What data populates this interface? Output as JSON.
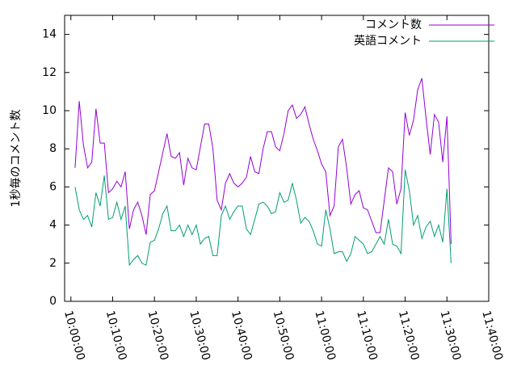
{
  "chart_data": {
    "type": "line",
    "y_label": "1秒毎のコメント数",
    "x": [
      "10:01:00",
      "10:02:00",
      "10:03:00",
      "10:04:00",
      "10:05:00",
      "10:06:00",
      "10:07:00",
      "10:08:00",
      "10:09:00",
      "10:10:00",
      "10:11:00",
      "10:12:00",
      "10:13:00",
      "10:14:00",
      "10:15:00",
      "10:16:00",
      "10:17:00",
      "10:18:00",
      "10:19:00",
      "10:20:00",
      "10:21:00",
      "10:22:00",
      "10:23:00",
      "10:24:00",
      "10:25:00",
      "10:26:00",
      "10:27:00",
      "10:28:00",
      "10:29:00",
      "10:30:00",
      "10:31:00",
      "10:32:00",
      "10:33:00",
      "10:34:00",
      "10:35:00",
      "10:36:00",
      "10:37:00",
      "10:38:00",
      "10:39:00",
      "10:40:00",
      "10:41:00",
      "10:42:00",
      "10:43:00",
      "10:44:00",
      "10:45:00",
      "10:46:00",
      "10:47:00",
      "10:48:00",
      "10:49:00",
      "10:50:00",
      "10:51:00",
      "10:52:00",
      "10:53:00",
      "10:54:00",
      "10:55:00",
      "10:56:00",
      "10:57:00",
      "10:58:00",
      "10:59:00",
      "11:00:00",
      "11:01:00",
      "11:02:00",
      "11:03:00",
      "11:04:00",
      "11:05:00",
      "11:06:00",
      "11:07:00",
      "11:08:00",
      "11:09:00",
      "11:10:00",
      "11:11:00",
      "11:12:00",
      "11:13:00",
      "11:14:00",
      "11:15:00",
      "11:16:00",
      "11:17:00",
      "11:18:00",
      "11:19:00",
      "11:20:00",
      "11:21:00",
      "11:22:00",
      "11:23:00",
      "11:24:00",
      "11:25:00",
      "11:26:00",
      "11:27:00",
      "11:28:00",
      "11:29:00",
      "11:30:00",
      "11:31:00"
    ],
    "series": [
      {
        "name": "コメント数",
        "color": "#9400d3",
        "values": [
          7.0,
          10.5,
          8.2,
          7.0,
          7.3,
          10.1,
          8.3,
          8.3,
          5.7,
          5.9,
          6.3,
          6.0,
          6.8,
          3.8,
          4.8,
          5.2,
          4.5,
          3.5,
          5.6,
          5.8,
          6.8,
          7.8,
          8.8,
          7.6,
          7.5,
          7.8,
          6.1,
          7.5,
          7.0,
          6.9,
          8.1,
          9.3,
          9.3,
          8.0,
          5.3,
          4.8,
          6.2,
          6.7,
          6.2,
          6.0,
          6.2,
          6.5,
          7.6,
          6.8,
          6.7,
          8.0,
          8.9,
          8.9,
          8.1,
          7.9,
          8.8,
          10.0,
          10.3,
          9.6,
          9.8,
          10.2,
          9.3,
          8.5,
          7.9,
          7.2,
          6.8,
          4.5,
          5.0,
          8.1,
          8.5,
          7.0,
          5.1,
          5.6,
          5.8,
          4.9,
          4.8,
          4.2,
          3.6,
          3.6,
          5.3,
          7.0,
          6.8,
          5.1,
          5.9,
          9.9,
          8.7,
          9.5,
          11.1,
          11.7,
          9.6,
          7.7,
          9.8,
          9.4,
          7.3,
          9.7,
          3.0
        ]
      },
      {
        "name": "英語コメント",
        "color": "#009e73",
        "values": [
          6.0,
          4.8,
          4.3,
          4.5,
          3.9,
          5.7,
          5.0,
          6.6,
          4.3,
          4.4,
          5.2,
          4.3,
          5.0,
          1.9,
          2.2,
          2.4,
          2.0,
          1.9,
          3.1,
          3.2,
          3.8,
          4.6,
          5.0,
          3.7,
          3.7,
          4.0,
          3.4,
          4.0,
          3.5,
          4.0,
          3.0,
          3.3,
          3.4,
          2.4,
          2.4,
          4.5,
          5.0,
          4.3,
          4.7,
          5.0,
          5.0,
          3.8,
          3.5,
          4.3,
          5.1,
          5.2,
          5.0,
          4.6,
          4.7,
          5.7,
          5.2,
          5.3,
          6.2,
          5.3,
          4.1,
          4.4,
          4.2,
          3.7,
          3.0,
          2.9,
          4.8,
          3.8,
          2.5,
          2.6,
          2.6,
          2.1,
          2.5,
          3.4,
          3.2,
          3.0,
          2.5,
          2.6,
          3.0,
          3.4,
          3.0,
          4.3,
          3.0,
          2.9,
          2.5,
          6.9,
          5.8,
          4.0,
          4.5,
          3.3,
          3.9,
          4.2,
          3.4,
          4.0,
          3.1,
          5.9,
          2.0
        ]
      }
    ],
    "xlim": [
      "09:58:30",
      "11:40:00"
    ],
    "xticks": [
      "10:00:00",
      "10:10:00",
      "10:20:00",
      "10:30:00",
      "10:40:00",
      "10:50:00",
      "11:00:00",
      "11:10:00",
      "11:20:00",
      "11:30:00",
      "11:40:00"
    ],
    "ylim": [
      0,
      15
    ],
    "yticks": [
      0,
      2,
      4,
      6,
      8,
      10,
      12,
      14
    ],
    "legend": "top-right"
  }
}
